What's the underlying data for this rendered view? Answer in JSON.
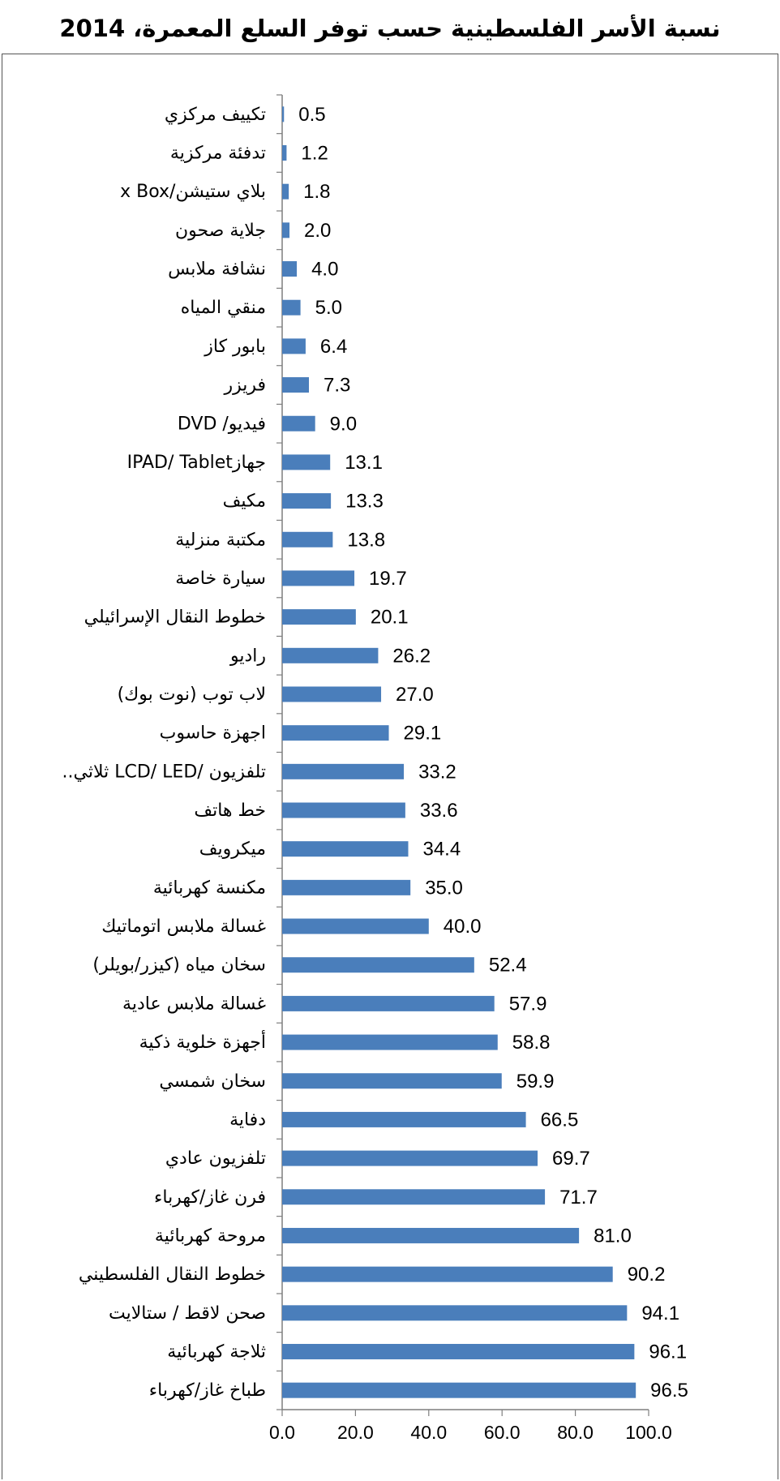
{
  "chart_data": {
    "type": "bar",
    "orientation": "horizontal",
    "title": "نسبة الأسر الفلسطينية حسب توفر السلع المعمرة، 2014",
    "xlabel": "",
    "ylabel": "",
    "xlim": [
      0,
      100
    ],
    "xticks": [
      "0.0",
      "20.0",
      "40.0",
      "60.0",
      "80.0",
      "100.0"
    ],
    "grid": false,
    "legend": "none",
    "bar_color": "#4a7ebb",
    "categories": [
      "تكييف مركزي",
      "تدفئة مركزية",
      "بلاي ستيشن/x Box",
      "جلاية صحون",
      "نشافة ملابس",
      "منقي المياه",
      "بابور كاز",
      "فريزر",
      "فيديو/ DVD",
      "جهازIPAD/ Tablet",
      "مكيف",
      "مكتبة منزلية",
      "سيارة خاصة",
      "خطوط النقال الإسرائيلي",
      "راديو",
      "لاب توب (نوت بوك)",
      "اجهزة حاسوب",
      "تلفزيون  /LCD/ LED ثلاثي..",
      "خط هاتف",
      "ميكرويف",
      "مكنسة كهربائية",
      "غسالة ملابس اتوماتيك",
      "سخان مياه (كيزر/بويلر)",
      "غسالة ملابس عادية",
      "أجهزة خلوية ذكية",
      "سخان شمسي",
      "دفاية",
      "تلفزيون عادي",
      "فرن غاز/كهرباء",
      "مروحة كهربائية",
      "خطوط النقال الفلسطيني",
      "صحن لاقط / ستالايت",
      "ثلاجة كهربائية",
      "طباخ غاز/كهرباء"
    ],
    "values": [
      0.5,
      1.2,
      1.8,
      2.0,
      4.0,
      5.0,
      6.4,
      7.3,
      9.0,
      13.1,
      13.3,
      13.8,
      19.7,
      20.1,
      26.2,
      27.0,
      29.1,
      33.2,
      33.6,
      34.4,
      35.0,
      40.0,
      52.4,
      57.9,
      58.8,
      59.9,
      66.5,
      69.7,
      71.7,
      81.0,
      90.2,
      94.1,
      96.1,
      96.5
    ],
    "value_labels": [
      "0.5",
      "1.2",
      "1.8",
      "2.0",
      "4.0",
      "5.0",
      "6.4",
      "7.3",
      "9.0",
      "13.1",
      "13.3",
      "13.8",
      "19.7",
      "20.1",
      "26.2",
      "27.0",
      "29.1",
      "33.2",
      "33.6",
      "34.4",
      "35.0",
      "40.0",
      "52.4",
      "57.9",
      "58.8",
      "59.9",
      "66.5",
      "69.7",
      "71.7",
      "81.0",
      "90.2",
      "94.1",
      "96.1",
      "96.5"
    ]
  }
}
